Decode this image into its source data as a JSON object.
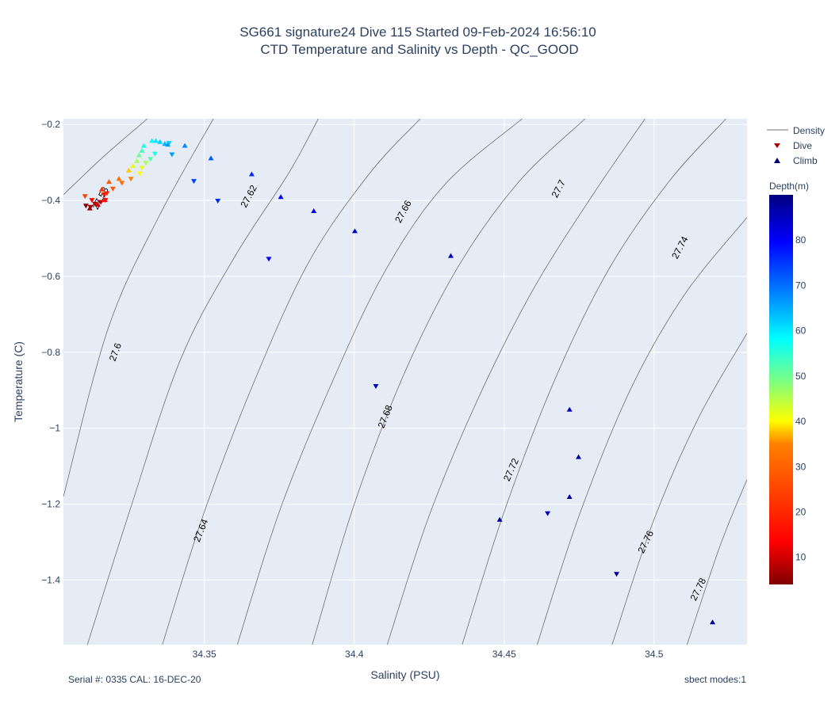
{
  "title_line1": "SG661 signature24 Dive 115 Started 09-Feb-2024 16:56:10",
  "title_line2": "CTD Temperature and Salinity vs Depth - QC_GOOD",
  "footer_left": "Serial #: 0335  CAL: 16-DEC-20",
  "footer_right": "sbect modes:1",
  "colors": {
    "plot_bg": "#e5ecf6",
    "grid": "#ffffff",
    "contour": "#6e6e6e",
    "text": "#2a3f5f"
  },
  "chart_data": {
    "type": "scatter",
    "xlabel": "Salinity (PSU)",
    "ylabel": "Temperature (C)",
    "xlim": [
      34.303,
      34.531
    ],
    "ylim": [
      -1.57,
      -0.185
    ],
    "xticks": [
      34.35,
      34.4,
      34.45,
      34.5
    ],
    "xtick_labels": [
      "34.35",
      "34.4",
      "34.45",
      "34.5"
    ],
    "yticks": [
      -0.2,
      -0.4,
      -0.6,
      -0.8,
      -1.0,
      -1.2,
      -1.4
    ],
    "ytick_labels": [
      "−0.2",
      "−0.4",
      "−0.6",
      "−0.8",
      "−1",
      "−1.2",
      "−1.4"
    ],
    "grid": true,
    "legend_position": "right",
    "legend": [
      {
        "name": "Density",
        "kind": "line",
        "color": "#6e6e6e"
      },
      {
        "name": "Dive",
        "kind": "triangle-down",
        "color": "#9e0000"
      },
      {
        "name": "Climb",
        "kind": "triangle-up",
        "color": "#00007f"
      }
    ],
    "colorbar": {
      "title": "Depth(m)",
      "range": [
        4,
        90
      ],
      "ticks": [
        10,
        20,
        30,
        40,
        50,
        60,
        70,
        80
      ],
      "colorscale": [
        "#800000",
        "#ff0000",
        "#ff8000",
        "#ffff00",
        "#80ff80",
        "#00ffff",
        "#0080ff",
        "#0000ff",
        "#000080"
      ]
    },
    "density_contours": [
      {
        "label": "27.58",
        "points": [
          [
            34.303,
            -0.385
          ],
          [
            34.317,
            -0.28
          ],
          [
            34.331,
            -0.185
          ]
        ],
        "label_at": [
          34.3155,
          -0.395
        ],
        "label_angle": -62
      },
      {
        "label": "27.6",
        "points": [
          [
            34.303,
            -1.18
          ],
          [
            34.318,
            -0.735
          ],
          [
            34.335,
            -0.44
          ],
          [
            34.353,
            -0.185
          ]
        ],
        "label_at": [
          34.3205,
          -0.8
        ],
        "label_angle": -70
      },
      {
        "label": "27.62",
        "points": [
          [
            34.311,
            -1.57
          ],
          [
            34.325,
            -1.22
          ],
          [
            34.342,
            -0.82
          ],
          [
            34.36,
            -0.55
          ],
          [
            34.378,
            -0.33
          ],
          [
            34.388,
            -0.185
          ]
        ],
        "label_at": [
          34.365,
          -0.39
        ],
        "label_angle": -62
      },
      {
        "label": "27.64",
        "points": [
          [
            34.336,
            -1.57
          ],
          [
            34.35,
            -1.22
          ],
          [
            34.367,
            -0.87
          ],
          [
            34.385,
            -0.56
          ],
          [
            34.405,
            -0.33
          ],
          [
            34.422,
            -0.185
          ]
        ],
        "label_at": [
          34.349,
          -1.27
        ],
        "label_angle": -68
      },
      {
        "label": "27.66",
        "points": [
          [
            34.361,
            -1.57
          ],
          [
            34.375,
            -1.22
          ],
          [
            34.392,
            -0.89
          ],
          [
            34.41,
            -0.59
          ],
          [
            34.43,
            -0.36
          ],
          [
            34.456,
            -0.185
          ]
        ],
        "label_at": [
          34.4165,
          -0.43
        ],
        "label_angle": -62
      },
      {
        "label": "27.68",
        "points": [
          [
            34.386,
            -1.57
          ],
          [
            34.4,
            -1.2
          ],
          [
            34.417,
            -0.85
          ],
          [
            34.435,
            -0.57
          ],
          [
            34.455,
            -0.35
          ],
          [
            34.477,
            -0.185
          ]
        ],
        "label_at": [
          34.4105,
          -0.97
        ],
        "label_angle": -68
      },
      {
        "label": "27.7",
        "points": [
          [
            34.411,
            -1.57
          ],
          [
            34.425,
            -1.23
          ],
          [
            34.442,
            -0.91
          ],
          [
            34.46,
            -0.63
          ],
          [
            34.48,
            -0.38
          ],
          [
            34.497,
            -0.185
          ]
        ],
        "label_at": [
          34.4683,
          -0.37
        ],
        "label_angle": -62
      },
      {
        "label": "27.72",
        "points": [
          [
            34.436,
            -1.57
          ],
          [
            34.45,
            -1.22
          ],
          [
            34.467,
            -0.87
          ],
          [
            34.485,
            -0.58
          ],
          [
            34.505,
            -0.35
          ],
          [
            34.524,
            -0.185
          ]
        ],
        "label_at": [
          34.4525,
          -1.11
        ],
        "label_angle": -66
      },
      {
        "label": "27.74",
        "points": [
          [
            34.461,
            -1.57
          ],
          [
            34.475,
            -1.23
          ],
          [
            34.492,
            -0.9
          ],
          [
            34.51,
            -0.65
          ],
          [
            34.531,
            -0.445
          ]
        ],
        "label_at": [
          34.5088,
          -0.525
        ],
        "label_angle": -62
      },
      {
        "label": "27.76",
        "points": [
          [
            34.486,
            -1.57
          ],
          [
            34.5,
            -1.24
          ],
          [
            34.515,
            -0.97
          ],
          [
            34.531,
            -0.75
          ]
        ],
        "label_at": [
          34.4974,
          -1.3
        ],
        "label_angle": -64
      },
      {
        "label": "27.78",
        "points": [
          [
            34.511,
            -1.57
          ],
          [
            34.522,
            -1.31
          ],
          [
            34.531,
            -1.135
          ]
        ],
        "label_at": [
          34.5149,
          -1.425
        ],
        "label_angle": -64
      }
    ],
    "series": [
      {
        "name": "Dive",
        "marker": "triangle-down",
        "points": [
          [
            34.3105,
            -0.415,
            5
          ],
          [
            34.312,
            -0.418,
            6
          ],
          [
            34.3135,
            -0.41,
            8
          ],
          [
            34.3155,
            -0.405,
            10
          ],
          [
            34.317,
            -0.4,
            12
          ],
          [
            34.3125,
            -0.4,
            14
          ],
          [
            34.3165,
            -0.385,
            18
          ],
          [
            34.3175,
            -0.382,
            20
          ],
          [
            34.3102,
            -0.39,
            24
          ],
          [
            34.3195,
            -0.37,
            28
          ],
          [
            34.3225,
            -0.355,
            32
          ],
          [
            34.3255,
            -0.344,
            35
          ],
          [
            34.3285,
            -0.33,
            40
          ],
          [
            34.3292,
            -0.315,
            42
          ],
          [
            34.3305,
            -0.302,
            46
          ],
          [
            34.332,
            -0.292,
            52
          ],
          [
            34.3335,
            -0.278,
            56
          ],
          [
            34.3382,
            -0.25,
            62
          ],
          [
            34.3392,
            -0.28,
            66
          ],
          [
            34.3465,
            -0.35,
            74
          ],
          [
            34.3545,
            -0.402,
            76
          ],
          [
            34.3715,
            -0.555,
            80
          ],
          [
            34.4072,
            -0.89,
            84
          ],
          [
            34.4645,
            -1.225,
            86
          ],
          [
            34.4875,
            -1.385,
            88
          ]
        ]
      },
      {
        "name": "Climb",
        "marker": "triangle-up",
        "points": [
          [
            34.3118,
            -0.42,
            6
          ],
          [
            34.3145,
            -0.41,
            10
          ],
          [
            34.3168,
            -0.398,
            15
          ],
          [
            34.3158,
            -0.37,
            22
          ],
          [
            34.3182,
            -0.35,
            28
          ],
          [
            34.3215,
            -0.342,
            33
          ],
          [
            34.3248,
            -0.32,
            38
          ],
          [
            34.3262,
            -0.308,
            42
          ],
          [
            34.3275,
            -0.295,
            46
          ],
          [
            34.3282,
            -0.28,
            50
          ],
          [
            34.3292,
            -0.268,
            53
          ],
          [
            34.3298,
            -0.255,
            56
          ],
          [
            34.3325,
            -0.242,
            58
          ],
          [
            34.3338,
            -0.242,
            60
          ],
          [
            34.3352,
            -0.245,
            62
          ],
          [
            34.3368,
            -0.25,
            64
          ],
          [
            34.3378,
            -0.252,
            66
          ],
          [
            34.3435,
            -0.255,
            68
          ],
          [
            34.3522,
            -0.288,
            72
          ],
          [
            34.3658,
            -0.33,
            76
          ],
          [
            34.3755,
            -0.39,
            80
          ],
          [
            34.3865,
            -0.427,
            82
          ],
          [
            34.4002,
            -0.48,
            84
          ],
          [
            34.4322,
            -0.545,
            85
          ],
          [
            34.4718,
            -0.95,
            86
          ],
          [
            34.4748,
            -1.075,
            87
          ],
          [
            34.4718,
            -1.18,
            88
          ],
          [
            34.4485,
            -1.24,
            88
          ],
          [
            34.5195,
            -1.51,
            89
          ]
        ]
      }
    ]
  }
}
